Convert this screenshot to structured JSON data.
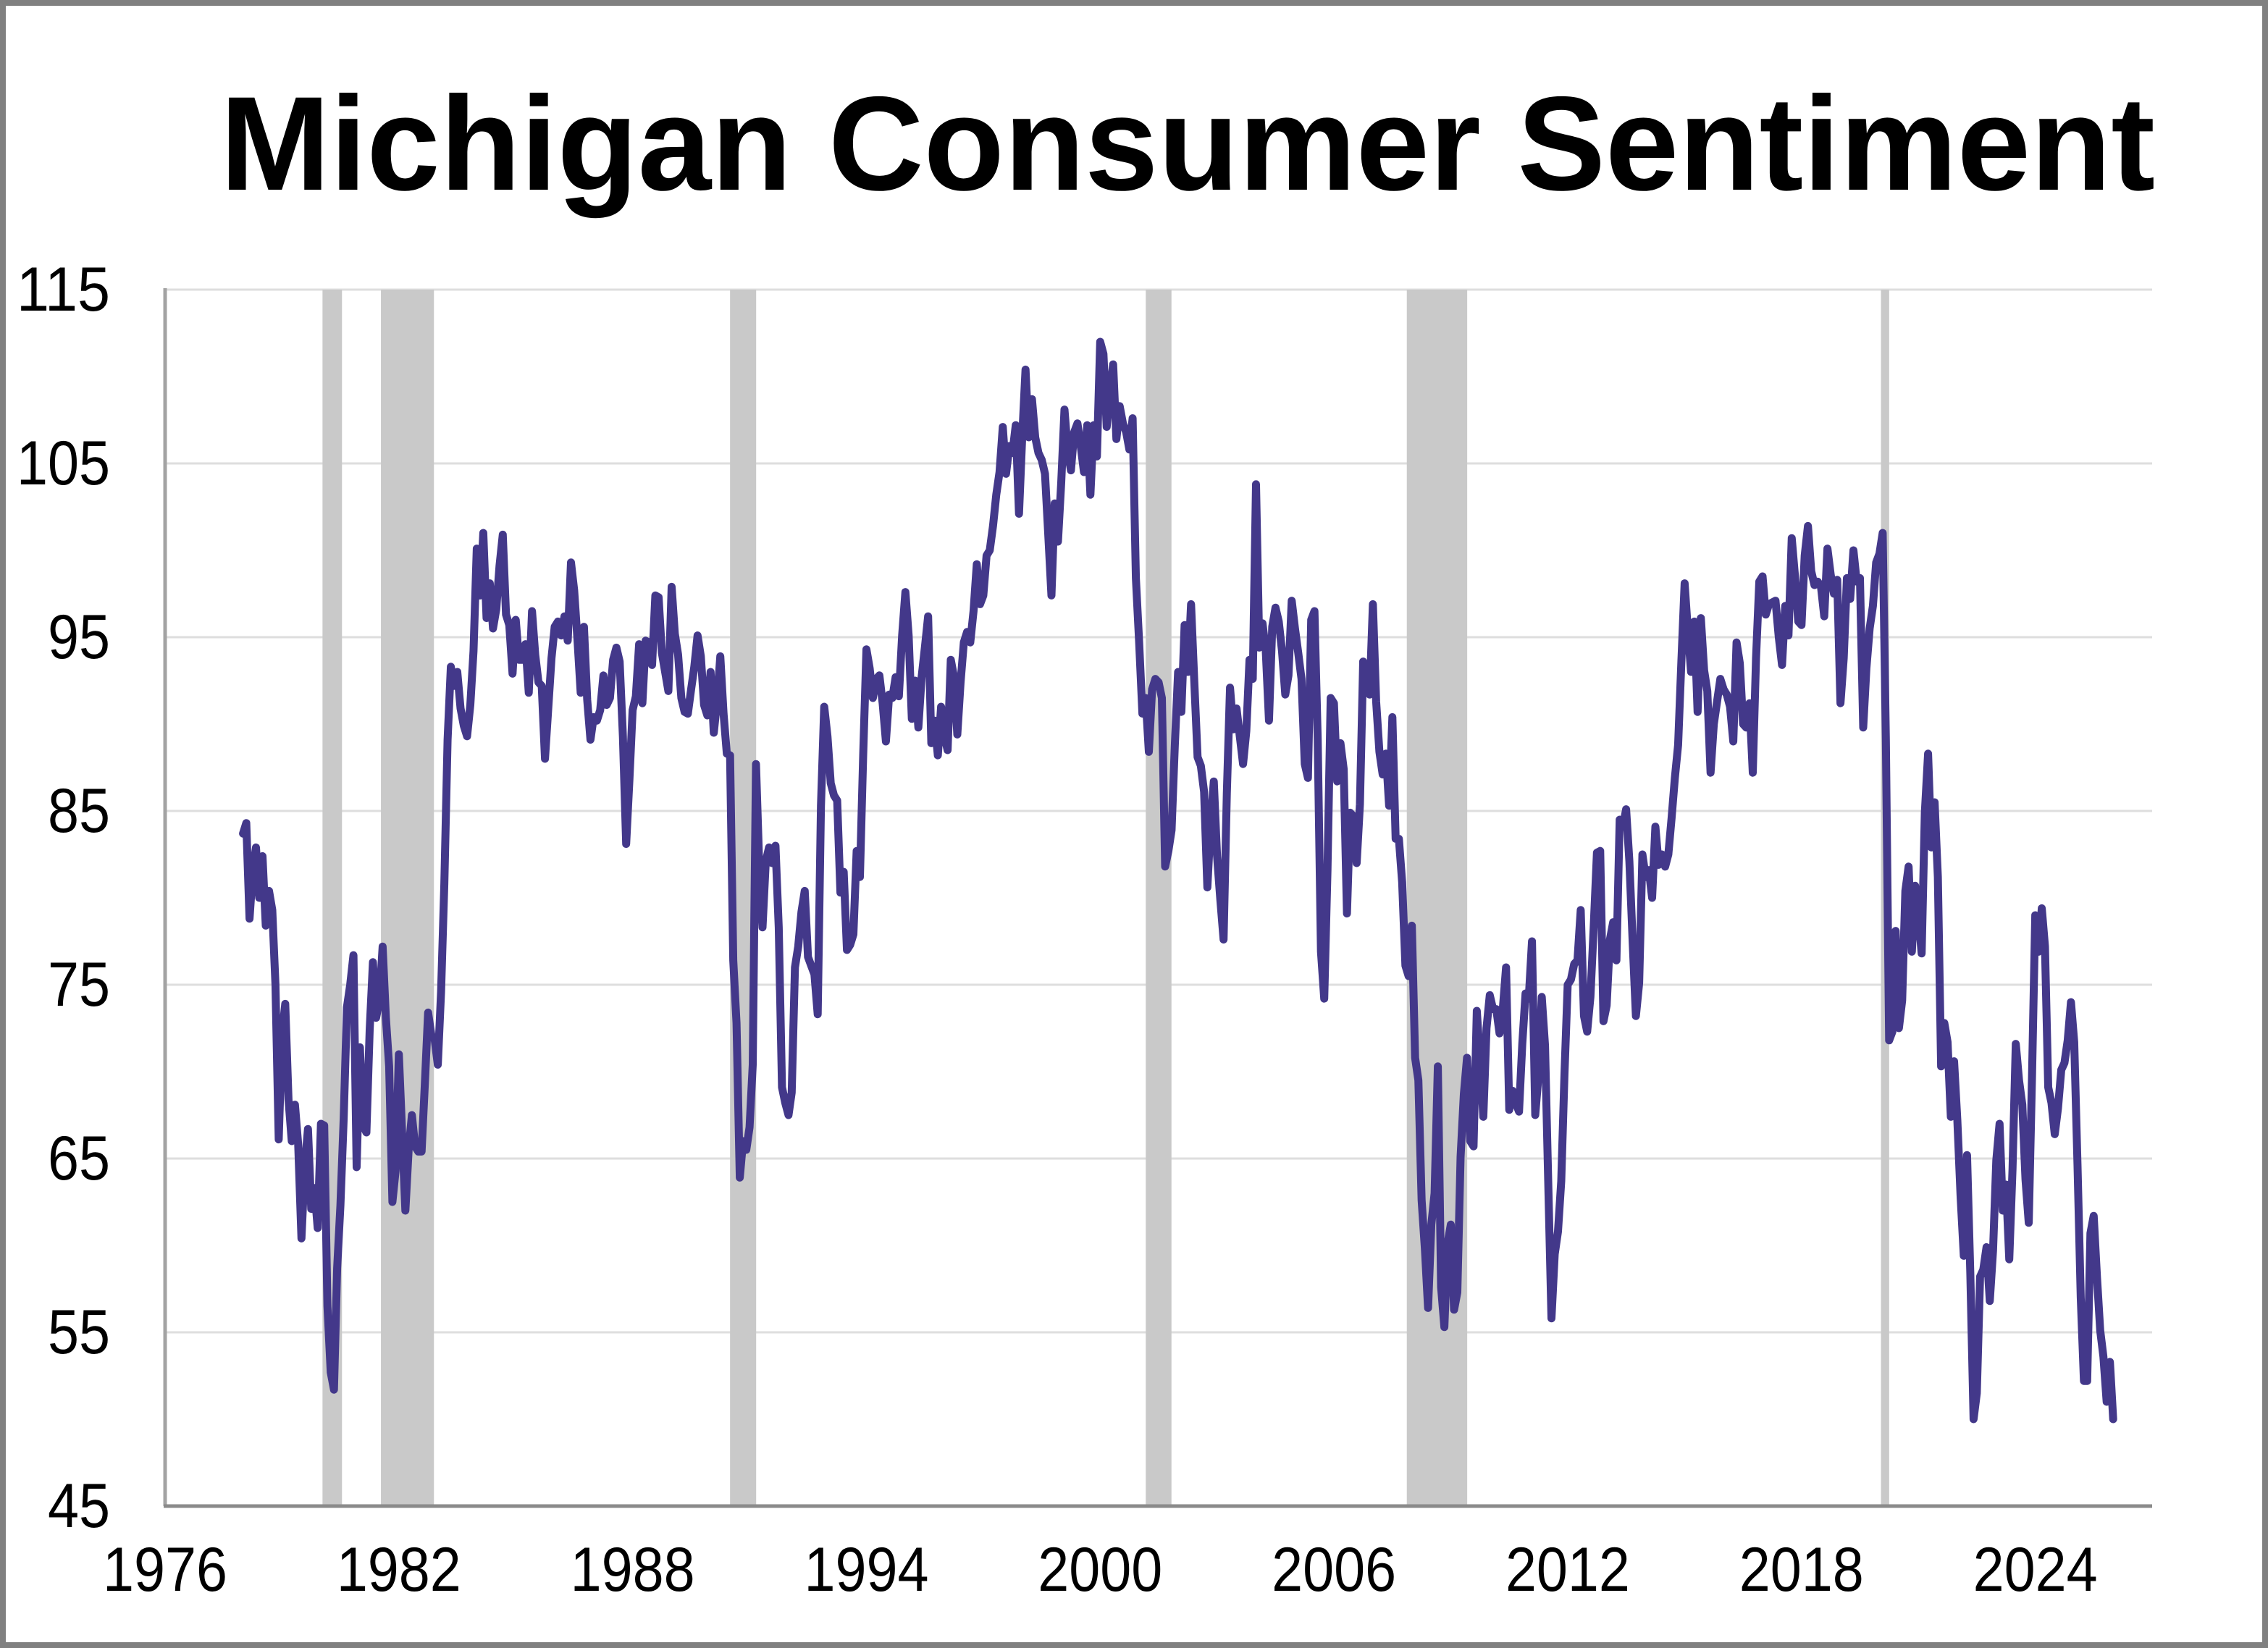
{
  "figure": {
    "title": "Michigan Consumer Sentiment"
  },
  "styles": {
    "line_color": "#43388A",
    "recession_band_color": "#C9C9C9",
    "grid_color": "#DEDEDE",
    "left_axis_color": "#A3A3A3",
    "bottom_axis_color": "#8A8A8A",
    "frame_color": "#808080",
    "background_color": "#FFFFFF",
    "text_color": "#000000"
  },
  "chart_data": {
    "type": "line",
    "title": "Michigan Consumer Sentiment",
    "grid": "horizontal-only",
    "legend": "none",
    "x_axis": {
      "range": [
        1976,
        2027
      ],
      "tick_years": [
        1976,
        1982,
        1988,
        1994,
        2000,
        2006,
        2012,
        2018,
        2024
      ],
      "tick_labels": [
        "1976",
        "1982",
        "1988",
        "1994",
        "2000",
        "2006",
        "2012",
        "2018",
        "2024"
      ]
    },
    "y_axis": {
      "range": [
        45,
        115
      ],
      "ticks": [
        115,
        105,
        95,
        85,
        75,
        65,
        55,
        45
      ],
      "tick_labels": [
        "115",
        "105",
        "95",
        "85",
        "75",
        "65",
        "55",
        "45"
      ]
    },
    "recession_bands": [
      [
        1980.04,
        1980.54
      ],
      [
        1981.54,
        1982.9
      ],
      [
        1990.5,
        1991.17
      ],
      [
        2001.17,
        2001.83
      ],
      [
        2007.87,
        2009.42
      ],
      [
        2020.04,
        2020.25
      ]
    ],
    "series": [
      {
        "name": "Michigan Consumer Sentiment Index",
        "frequency": "monthly",
        "start": "1978-01",
        "end": "2026-01",
        "color": "#43388A",
        "values": [
          83.7,
          84.3,
          78.8,
          81.6,
          82.9,
          80.0,
          82.4,
          78.4,
          80.4,
          79.3,
          75.0,
          66.1,
          72.1,
          73.9,
          68.4,
          66.0,
          68.1,
          65.8,
          60.4,
          64.5,
          66.7,
          62.1,
          63.3,
          61.0,
          67.0,
          66.9,
          56.5,
          52.7,
          51.7,
          58.7,
          62.3,
          67.3,
          73.7,
          75.0,
          76.7,
          64.5,
          71.4,
          66.9,
          66.5,
          72.4,
          76.3,
          73.1,
          74.1,
          77.2,
          73.1,
          70.3,
          62.5,
          64.3,
          71.0,
          66.5,
          62.0,
          65.5,
          67.5,
          65.7,
          65.4,
          65.4,
          69.3,
          73.4,
          72.1,
          71.9,
          70.4,
          74.6,
          80.8,
          89.1,
          93.3,
          92.2,
          93.0,
          90.9,
          89.9,
          89.3,
          91.1,
          94.2,
          100.1,
          97.4,
          101.0,
          96.1,
          98.1,
          95.5,
          96.6,
          99.1,
          100.9,
          96.3,
          95.7,
          92.9,
          96.0,
          93.7,
          93.7,
          94.6,
          91.8,
          96.5,
          94.0,
          92.4,
          92.2,
          88.0,
          90.9,
          93.8,
          95.6,
          95.9,
          95.1,
          96.2,
          94.8,
          99.3,
          97.7,
          94.9,
          91.8,
          95.6,
          91.4,
          89.1,
          90.4,
          90.2,
          90.8,
          92.8,
          91.1,
          91.5,
          93.7,
          94.4,
          93.6,
          89.3,
          83.1,
          86.8,
          90.8,
          91.6,
          94.6,
          91.2,
          94.8,
          94.7,
          93.4,
          97.4,
          97.3,
          94.1,
          93.0,
          91.9,
          97.9,
          95.2,
          94.0,
          91.5,
          90.7,
          90.6,
          92.0,
          93.3,
          95.1,
          93.9,
          91.1,
          90.5,
          93.0,
          89.5,
          91.3,
          93.9,
          90.6,
          88.3,
          88.2,
          76.4,
          72.8,
          63.9,
          66.0,
          65.5,
          66.8,
          70.4,
          87.7,
          81.8,
          78.3,
          82.1,
          82.9,
          82.0,
          83.0,
          78.3,
          69.1,
          68.2,
          67.5,
          68.8,
          76.0,
          77.2,
          79.2,
          80.4,
          76.6,
          76.1,
          75.6,
          73.3,
          85.3,
          91.0,
          89.3,
          86.6,
          85.9,
          85.6,
          80.3,
          81.5,
          77.0,
          77.3,
          77.9,
          82.7,
          81.2,
          88.2,
          94.3,
          93.2,
          91.5,
          92.6,
          92.8,
          91.2,
          89.0,
          91.7,
          91.5,
          92.7,
          91.6,
          95.1,
          97.6,
          95.1,
          90.3,
          92.5,
          89.8,
          92.7,
          94.4,
          96.2,
          88.9,
          90.2,
          88.2,
          91.0,
          89.3,
          88.5,
          93.7,
          92.7,
          89.4,
          92.4,
          94.7,
          95.3,
          94.7,
          96.5,
          99.2,
          96.9,
          97.4,
          99.7,
          100.0,
          101.4,
          103.2,
          104.5,
          107.1,
          104.4,
          106.0,
          105.6,
          107.2,
          102.1,
          106.6,
          110.4,
          106.5,
          108.7,
          106.5,
          105.6,
          105.2,
          104.4,
          100.9,
          97.4,
          102.7,
          100.5,
          103.9,
          108.1,
          105.7,
          104.6,
          106.8,
          107.3,
          106.0,
          104.5,
          107.2,
          103.2,
          107.2,
          105.4,
          112.0,
          111.3,
          107.1,
          109.2,
          110.7,
          106.4,
          108.3,
          107.3,
          106.8,
          105.8,
          107.6,
          98.4,
          94.7,
          90.6,
          91.5,
          88.4,
          92.0,
          92.6,
          92.4,
          91.5,
          81.8,
          82.7,
          83.9,
          88.8,
          93.0,
          90.7,
          95.7,
          93.0,
          96.9,
          92.4,
          88.1,
          87.6,
          86.1,
          80.6,
          84.2,
          86.7,
          82.4,
          79.9,
          77.6,
          86.0,
          92.1,
          89.7,
          90.9,
          89.3,
          87.7,
          89.6,
          93.7,
          92.6,
          103.8,
          94.4,
          95.8,
          94.2,
          90.2,
          95.6,
          96.7,
          95.9,
          94.2,
          91.7,
          92.8,
          97.1,
          95.5,
          94.1,
          92.6,
          87.7,
          86.9,
          96.0,
          96.5,
          89.1,
          76.9,
          74.2,
          81.6,
          91.5,
          91.2,
          86.7,
          88.9,
          87.4,
          79.1,
          84.9,
          84.7,
          82.0,
          85.4,
          93.6,
          92.1,
          91.7,
          96.9,
          91.3,
          88.4,
          87.1,
          88.3,
          85.3,
          90.4,
          83.4,
          83.4,
          80.9,
          76.1,
          75.5,
          78.4,
          70.8,
          69.5,
          62.6,
          59.8,
          56.4,
          61.2,
          63.0,
          70.3,
          57.6,
          55.3,
          60.1,
          61.2,
          56.3,
          57.3,
          65.1,
          68.7,
          70.8,
          66.0,
          65.7,
          73.5,
          70.6,
          67.4,
          72.5,
          74.4,
          73.6,
          73.6,
          72.2,
          73.6,
          76.0,
          67.8,
          68.9,
          68.2,
          67.7,
          71.6,
          74.5,
          74.2,
          77.5,
          67.5,
          69.8,
          74.3,
          71.5,
          63.7,
          55.8,
          59.5,
          60.8,
          63.7,
          69.9,
          75.0,
          75.3,
          76.2,
          76.4,
          79.3,
          73.2,
          72.3,
          74.3,
          78.3,
          82.6,
          82.7,
          72.9,
          73.8,
          77.6,
          78.6,
          76.4,
          84.5,
          84.1,
          85.1,
          82.1,
          77.5,
          73.2,
          75.1,
          82.5,
          81.2,
          81.6,
          80.0,
          84.1,
          81.9,
          82.5,
          81.8,
          82.5,
          84.6,
          86.9,
          88.8,
          93.6,
          98.1,
          95.4,
          93.0,
          95.9,
          90.7,
          96.1,
          93.1,
          91.9,
          87.2,
          90.0,
          91.3,
          92.6,
          92.0,
          91.7,
          91.0,
          89.0,
          94.7,
          93.5,
          90.0,
          89.8,
          91.2,
          87.2,
          93.8,
          98.2,
          98.5,
          96.3,
          96.9,
          97.0,
          97.1,
          95.0,
          93.4,
          96.8,
          95.1,
          100.7,
          98.5,
          95.9,
          95.7,
          99.7,
          101.4,
          98.8,
          98.0,
          98.2,
          97.9,
          96.2,
          100.1,
          98.6,
          97.5,
          98.3,
          91.2,
          93.8,
          98.4,
          97.2,
          100.0,
          98.2,
          98.4,
          89.8,
          93.2,
          95.5,
          96.8,
          99.3,
          99.8,
          101.0,
          89.1,
          71.8,
          72.3,
          78.1,
          72.5,
          74.1,
          80.4,
          81.8,
          76.9,
          80.7,
          79.0,
          76.8,
          84.9,
          88.3,
          82.9,
          85.5,
          81.2,
          70.3,
          72.8,
          71.7,
          67.4,
          70.6,
          67.2,
          62.8,
          59.4,
          65.2,
          58.4,
          50.0,
          51.5,
          58.2,
          58.6,
          59.9,
          56.8,
          59.7,
          64.9,
          67.0,
          62.0,
          63.5,
          59.2,
          64.4,
          71.6,
          69.5,
          68.1,
          63.8,
          61.3,
          69.7,
          79.0,
          76.9,
          79.4,
          77.2,
          69.1,
          68.2,
          66.4,
          67.9,
          70.1,
          70.5,
          71.8,
          74.0,
          71.7,
          64.7,
          57.0,
          52.2,
          52.2,
          60.7,
          61.7,
          58.2,
          55.1,
          53.6,
          51.0,
          53.3,
          50.0
        ]
      }
    ]
  }
}
